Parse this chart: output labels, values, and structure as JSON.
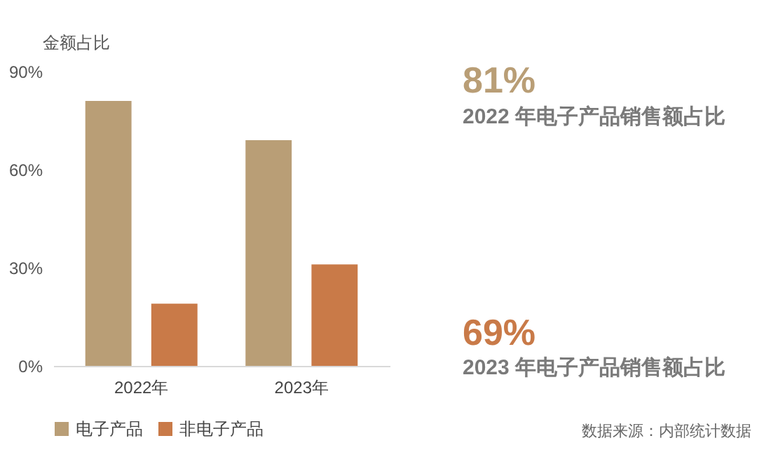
{
  "chart_data": {
    "type": "bar",
    "ylabel": "金额占比",
    "categories": [
      "2022年",
      "2023年"
    ],
    "series": [
      {
        "name": "电子产品",
        "color": "#b99e76",
        "values": [
          81,
          69
        ]
      },
      {
        "name": "非电子产品",
        "color": "#c97a48",
        "values": [
          19,
          31
        ]
      }
    ],
    "ylim": [
      0,
      90
    ],
    "yticks": [
      {
        "value": 0,
        "label": "0%"
      },
      {
        "value": 30,
        "label": "30%"
      },
      {
        "value": 60,
        "label": "60%"
      },
      {
        "value": 90,
        "label": "90%"
      }
    ],
    "grid": false,
    "legend": "bottom",
    "annotations": [
      "81%",
      "2022 年电子产品销售额占比",
      "69%",
      "2023 年电子产品销售额占比",
      "数据来源：内部统计数据"
    ]
  }
}
